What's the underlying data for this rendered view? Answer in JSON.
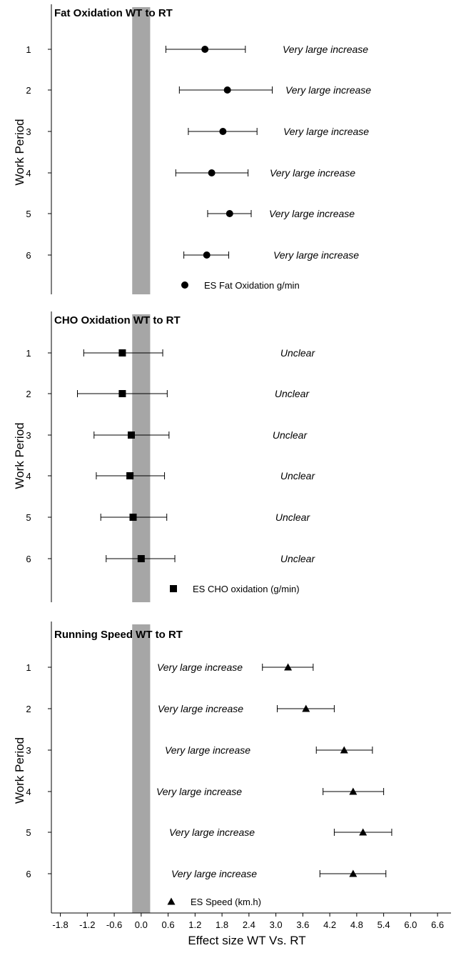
{
  "chart_data": {
    "type": "scatter",
    "x_axis": {
      "label": "Effect size WT Vs. RT",
      "ticks": [
        "-1.8",
        "-1.2",
        "-0.6",
        "0.0",
        "0.6",
        "1.2",
        "1.8",
        "2.4",
        "3.0",
        "3.6",
        "4.2",
        "4.8",
        "5.4",
        "6.0",
        "6.6"
      ],
      "range": [
        -2.0,
        6.9
      ]
    },
    "trivial_band": [
      -0.2,
      0.2
    ],
    "band_color": "#a6a6a6",
    "panels": [
      {
        "title": "Fat Oxidation WT to RT",
        "ylabel": "Work Period",
        "marker": "circle",
        "legend": "ES Fat Oxidation g/min",
        "categories": [
          "1",
          "2",
          "3",
          "4",
          "5",
          "6"
        ],
        "points": [
          {
            "es": 1.42,
            "lo": 0.55,
            "hi": 2.32,
            "label": "Very large increase"
          },
          {
            "es": 1.92,
            "lo": 0.85,
            "hi": 2.92,
            "label": "Very large increase"
          },
          {
            "es": 1.82,
            "lo": 1.05,
            "hi": 2.58,
            "label": "Very large increase"
          },
          {
            "es": 1.57,
            "lo": 0.77,
            "hi": 2.38,
            "label": "Very large increase"
          },
          {
            "es": 1.97,
            "lo": 1.48,
            "hi": 2.45,
            "label": "Very large increase"
          },
          {
            "es": 1.46,
            "lo": 0.95,
            "hi": 1.95,
            "label": "Very large increase"
          }
        ]
      },
      {
        "title": "CHO Oxidation WT to RT",
        "ylabel": "Work Period",
        "marker": "square",
        "legend": "ES CHO oxidation (g/min)",
        "categories": [
          "1",
          "2",
          "3",
          "4",
          "5",
          "6"
        ],
        "points": [
          {
            "es": -0.42,
            "lo": -1.28,
            "hi": 0.48,
            "label": "Unclear"
          },
          {
            "es": -0.42,
            "lo": -1.42,
            "hi": 0.58,
            "label": "Unclear"
          },
          {
            "es": -0.22,
            "lo": -1.05,
            "hi": 0.62,
            "label": "Unclear"
          },
          {
            "es": -0.25,
            "lo": -1.0,
            "hi": 0.52,
            "label": "Unclear"
          },
          {
            "es": -0.18,
            "lo": -0.9,
            "hi": 0.57,
            "label": "Unclear"
          },
          {
            "es": 0.0,
            "lo": -0.78,
            "hi": 0.75,
            "label": "Unclear"
          }
        ]
      },
      {
        "title": "Running Speed WT to RT",
        "ylabel": "Work Period",
        "marker": "triangle",
        "legend": "ES Speed (km.h)",
        "categories": [
          "1",
          "2",
          "3",
          "4",
          "5",
          "6"
        ],
        "points": [
          {
            "es": 3.27,
            "lo": 2.7,
            "hi": 3.83,
            "label": "Very large increase"
          },
          {
            "es": 3.67,
            "lo": 3.03,
            "hi": 4.3,
            "label": "Very large increase"
          },
          {
            "es": 4.52,
            "lo": 3.9,
            "hi": 5.15,
            "label": "Very large increase"
          },
          {
            "es": 4.72,
            "lo": 4.05,
            "hi": 5.4,
            "label": "Very large increase"
          },
          {
            "es": 4.94,
            "lo": 4.3,
            "hi": 5.58,
            "label": "Very large increase"
          },
          {
            "es": 4.72,
            "lo": 3.98,
            "hi": 5.45,
            "label": "Very large increase"
          }
        ]
      }
    ]
  }
}
